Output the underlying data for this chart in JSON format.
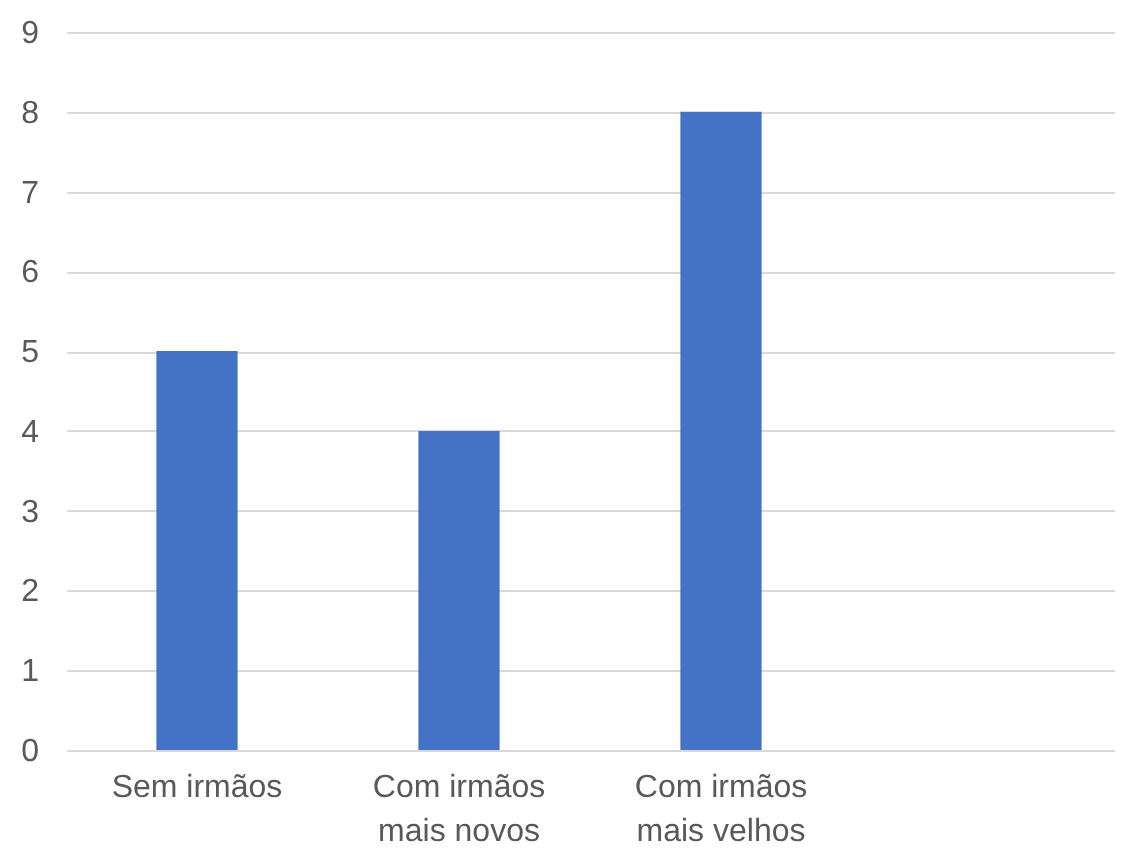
{
  "chart_data": {
    "type": "bar",
    "categories": [
      "Sem irmãos",
      "Com irmãos mais novos",
      "Com irmãos mais velhos",
      null
    ],
    "values": [
      5,
      4,
      8,
      null
    ],
    "color": "#4472c4",
    "ylim": [
      0,
      9
    ],
    "yticks": [
      0,
      1,
      2,
      3,
      4,
      5,
      6,
      7,
      8,
      9
    ],
    "grid": "y"
  }
}
